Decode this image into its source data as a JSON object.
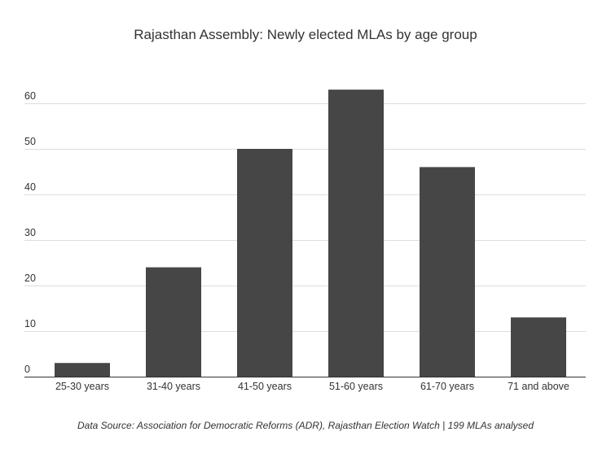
{
  "chart_data": {
    "type": "bar",
    "title": "Rajasthan Assembly: Newly elected MLAs by age group",
    "xlabel": "",
    "ylabel": "",
    "categories": [
      "25-30 years",
      "31-40 years",
      "41-50 years",
      "51-60 years",
      "61-70 years",
      "71 and above"
    ],
    "values": [
      3,
      24,
      50,
      63,
      46,
      13
    ],
    "ylim": [
      0,
      60
    ],
    "yticks": [
      0,
      10,
      20,
      30,
      40,
      50,
      60
    ],
    "grid": true,
    "legend": "none",
    "bar_color": "#464646",
    "grid_color": "#dddddd",
    "source_note": "Data Source: Association for Democratic Reforms (ADR), Rajasthan Election Watch | 199 MLAs analysed"
  }
}
